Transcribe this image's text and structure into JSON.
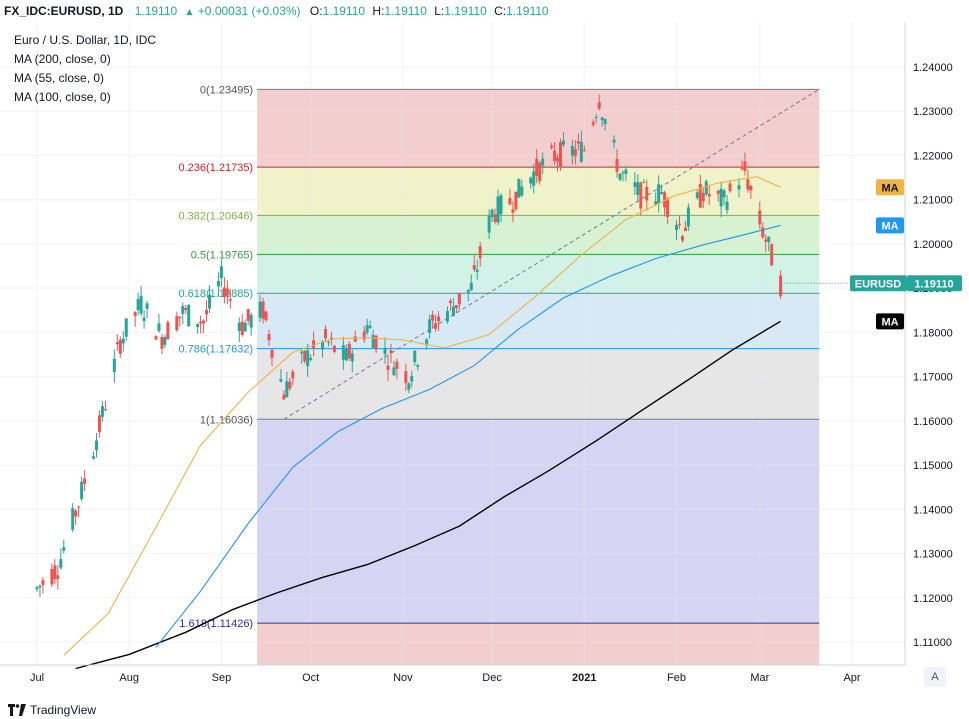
{
  "header": {
    "symbol": "FX_IDC:EURUSD, 1D",
    "last": "1.19110",
    "change": "+0.00031 (+0.03%)",
    "o_label": "O:",
    "o_value": "1.19110",
    "h_label": "H:",
    "h_value": "1.19110",
    "l_label": "L:",
    "l_value": "1.19110",
    "c_label": "C:",
    "c_value": "1.19110"
  },
  "legend": {
    "title": "Euro / U.S. Dollar, 1D, IDC",
    "ma1": "MA (200, close, 0)",
    "ma2": "MA (55, close, 0)",
    "ma3": "MA (100, close, 0)"
  },
  "footer": {
    "brand": "TradingView",
    "auto_label": "A"
  },
  "colors": {
    "up": "#26a69a",
    "down": "#ef5350",
    "ma200": "#000000",
    "ma55": "#f0b443",
    "ma100": "#2196f3",
    "badge_price": "#26a69a"
  },
  "chart_data": {
    "type": "candlestick",
    "symbol": "EURUSD",
    "ylim": [
      1.1055,
      1.2465
    ],
    "y_ticks": [
      "1.24000",
      "1.23000",
      "1.22000",
      "1.21000",
      "1.20000",
      "1.19000",
      "1.18000",
      "1.17000",
      "1.16000",
      "1.15000",
      "1.14000",
      "1.13000",
      "1.12000",
      "1.11000"
    ],
    "x_ticks": [
      {
        "label": "Jul",
        "date": "2020-07-01"
      },
      {
        "label": "Aug",
        "date": "2020-08-01"
      },
      {
        "label": "Sep",
        "date": "2020-09-01"
      },
      {
        "label": "Oct",
        "date": "2020-10-01"
      },
      {
        "label": "Nov",
        "date": "2020-11-01"
      },
      {
        "label": "Dec",
        "date": "2020-12-01"
      },
      {
        "label": "2021",
        "date": "2021-01-01"
      },
      {
        "label": "Feb",
        "date": "2021-02-01"
      },
      {
        "label": "Mar",
        "date": "2021-03-01"
      },
      {
        "label": "Apr",
        "date": "2021-04-01"
      }
    ],
    "price_badge": {
      "symbol": "EURUSD",
      "value": "1.19110"
    },
    "ma_badges": [
      "MA",
      "MA",
      "MA"
    ],
    "fibonacci": {
      "start_date": "2020-09-13",
      "end_date": "2021-03-21",
      "levels": [
        {
          "label": "0(1.23495)",
          "price": 1.23495,
          "line": "#787b86",
          "fill": "#f2c9c9"
        },
        {
          "label": "0.236(1.21735)",
          "price": 1.21735,
          "line": "#c62828",
          "fill": "#eef2c3"
        },
        {
          "label": "0.382(1.20646)",
          "price": 1.20646,
          "line": "#7cb342",
          "fill": "#d2f1cc"
        },
        {
          "label": "0.5(1.19765)",
          "price": 1.19765,
          "line": "#2e9e44",
          "fill": "#cdf1e6"
        },
        {
          "label": "0.618(1.18885)",
          "price": 1.18885,
          "line": "#26a69a",
          "fill": "#d3e7f4"
        },
        {
          "label": "0.786(1.17632)",
          "price": 1.17632,
          "line": "#2196f3",
          "fill": "#e3e3e3"
        },
        {
          "label": "1(1.16036)",
          "price": 1.16036,
          "line": "#787b86",
          "fill": "#d0d0f2"
        },
        {
          "label": "1.618(1.11426)",
          "price": 1.11426,
          "line": "#3030a0",
          "fill": "#f2c9c9"
        }
      ],
      "trend_from": {
        "date": "2020-09-22",
        "price": 1.16036
      },
      "trend_to": {
        "date": "2021-03-21",
        "price": 1.23495
      }
    },
    "series": [
      {
        "name": "MA (200, close, 0)",
        "color": "#000000",
        "points": [
          [
            "2020-07-14",
            1.104
          ],
          [
            "2020-08-01",
            1.1072
          ],
          [
            "2020-08-20",
            1.1122
          ],
          [
            "2020-09-05",
            1.1174
          ],
          [
            "2020-09-20",
            1.1212
          ],
          [
            "2020-10-05",
            1.1246
          ],
          [
            "2020-10-20",
            1.1275
          ],
          [
            "2020-11-05",
            1.1318
          ],
          [
            "2020-11-20",
            1.1362
          ],
          [
            "2020-12-05",
            1.1428
          ],
          [
            "2020-12-20",
            1.1487
          ],
          [
            "2021-01-05",
            1.1555
          ],
          [
            "2021-01-20",
            1.1622
          ],
          [
            "2021-02-05",
            1.1693
          ],
          [
            "2021-02-20",
            1.1761
          ],
          [
            "2021-03-08",
            1.1825
          ]
        ]
      },
      {
        "name": "MA (55, close, 0)",
        "color": "#f0b443",
        "points": [
          [
            "2020-07-10",
            1.107
          ],
          [
            "2020-07-25",
            1.1165
          ],
          [
            "2020-08-10",
            1.136
          ],
          [
            "2020-08-25",
            1.1545
          ],
          [
            "2020-09-10",
            1.1665
          ],
          [
            "2020-09-25",
            1.1755
          ],
          [
            "2020-10-08",
            1.1785
          ],
          [
            "2020-10-20",
            1.1788
          ],
          [
            "2020-11-01",
            1.1783
          ],
          [
            "2020-11-15",
            1.1765
          ],
          [
            "2020-11-30",
            1.1795
          ],
          [
            "2020-12-15",
            1.1878
          ],
          [
            "2020-12-31",
            1.1975
          ],
          [
            "2021-01-15",
            1.2055
          ],
          [
            "2021-01-31",
            1.2108
          ],
          [
            "2021-02-15",
            1.2138
          ],
          [
            "2021-02-28",
            1.2152
          ],
          [
            "2021-03-08",
            1.2128
          ]
        ]
      },
      {
        "name": "MA (100, close, 0)",
        "color": "#2196f3",
        "points": [
          [
            "2020-08-10",
            1.1088
          ],
          [
            "2020-08-25",
            1.1215
          ],
          [
            "2020-09-10",
            1.1368
          ],
          [
            "2020-09-25",
            1.1495
          ],
          [
            "2020-10-10",
            1.1575
          ],
          [
            "2020-10-25",
            1.1628
          ],
          [
            "2020-11-10",
            1.1671
          ],
          [
            "2020-11-25",
            1.1725
          ],
          [
            "2020-12-10",
            1.1808
          ],
          [
            "2020-12-25",
            1.1878
          ],
          [
            "2021-01-10",
            1.1928
          ],
          [
            "2021-01-25",
            1.1967
          ],
          [
            "2021-02-10",
            1.1998
          ],
          [
            "2021-02-25",
            1.2023
          ],
          [
            "2021-03-08",
            1.2042
          ]
        ]
      },
      {
        "name": "EURUSD close",
        "color": "#26a69a",
        "points": [
          [
            "2020-07-01",
            1.122
          ],
          [
            "2020-07-08",
            1.127
          ],
          [
            "2020-07-15",
            1.1415
          ],
          [
            "2020-07-22",
            1.1585
          ],
          [
            "2020-07-29",
            1.178
          ],
          [
            "2020-08-05",
            1.1865
          ],
          [
            "2020-08-12",
            1.179
          ],
          [
            "2020-08-19",
            1.1845
          ],
          [
            "2020-08-26",
            1.1825
          ],
          [
            "2020-09-01",
            1.192
          ],
          [
            "2020-09-08",
            1.1815
          ],
          [
            "2020-09-15",
            1.185
          ],
          [
            "2020-09-22",
            1.1665
          ],
          [
            "2020-09-29",
            1.174
          ],
          [
            "2020-10-06",
            1.178
          ],
          [
            "2020-10-13",
            1.174
          ],
          [
            "2020-10-20",
            1.1815
          ],
          [
            "2020-10-27",
            1.1745
          ],
          [
            "2020-11-03",
            1.17
          ],
          [
            "2020-11-10",
            1.181
          ],
          [
            "2020-11-17",
            1.1855
          ],
          [
            "2020-11-24",
            1.19
          ],
          [
            "2020-12-01",
            1.207
          ],
          [
            "2020-12-08",
            1.21
          ],
          [
            "2020-12-15",
            1.216
          ],
          [
            "2020-12-22",
            1.22
          ],
          [
            "2021-01-01",
            1.2215
          ],
          [
            "2021-01-06",
            1.233
          ],
          [
            "2021-01-13",
            1.216
          ],
          [
            "2021-01-20",
            1.211
          ],
          [
            "2021-01-27",
            1.2115
          ],
          [
            "2021-02-03",
            1.203
          ],
          [
            "2021-02-10",
            1.212
          ],
          [
            "2021-02-17",
            1.2095
          ],
          [
            "2021-02-24",
            1.2165
          ],
          [
            "2021-03-01",
            1.205
          ],
          [
            "2021-03-08",
            1.1911
          ]
        ]
      }
    ]
  }
}
